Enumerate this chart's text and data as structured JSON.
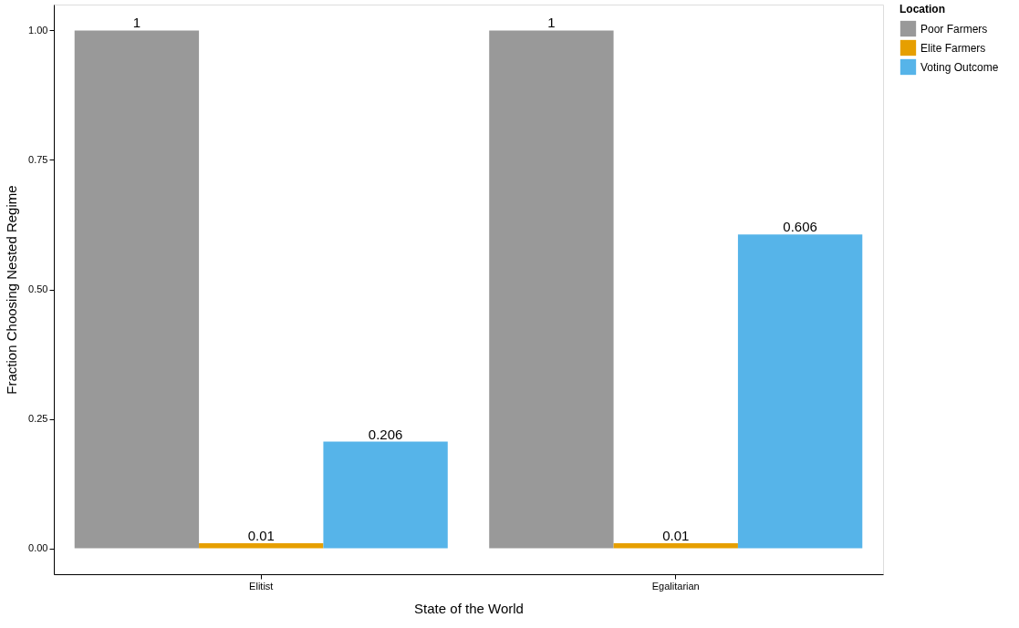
{
  "chart_data": {
    "type": "bar",
    "xlabel": "State of the World",
    "ylabel": "Fraction Choosing Nested Regime",
    "legend_title": "Location",
    "categories": [
      "Elitist",
      "Egalitarian"
    ],
    "series": [
      {
        "name": "Poor Farmers",
        "color": "#999999",
        "values": [
          1,
          1
        ]
      },
      {
        "name": "Elite Farmers",
        "color": "#e69f00",
        "values": [
          0.01,
          0.01
        ]
      },
      {
        "name": "Voting Outcome",
        "color": "#56b4e9",
        "values": [
          0.206,
          0.606
        ]
      }
    ],
    "ylim": [
      -0.05,
      1.05
    ],
    "yticks": [
      {
        "value": 0,
        "label": "0.00"
      },
      {
        "value": 0.25,
        "label": "0.25"
      },
      {
        "value": 0.5,
        "label": "0.50"
      },
      {
        "value": 0.75,
        "label": "0.75"
      },
      {
        "value": 1,
        "label": "1.00"
      }
    ],
    "data_labels": true,
    "grid": false,
    "legend": "right"
  }
}
